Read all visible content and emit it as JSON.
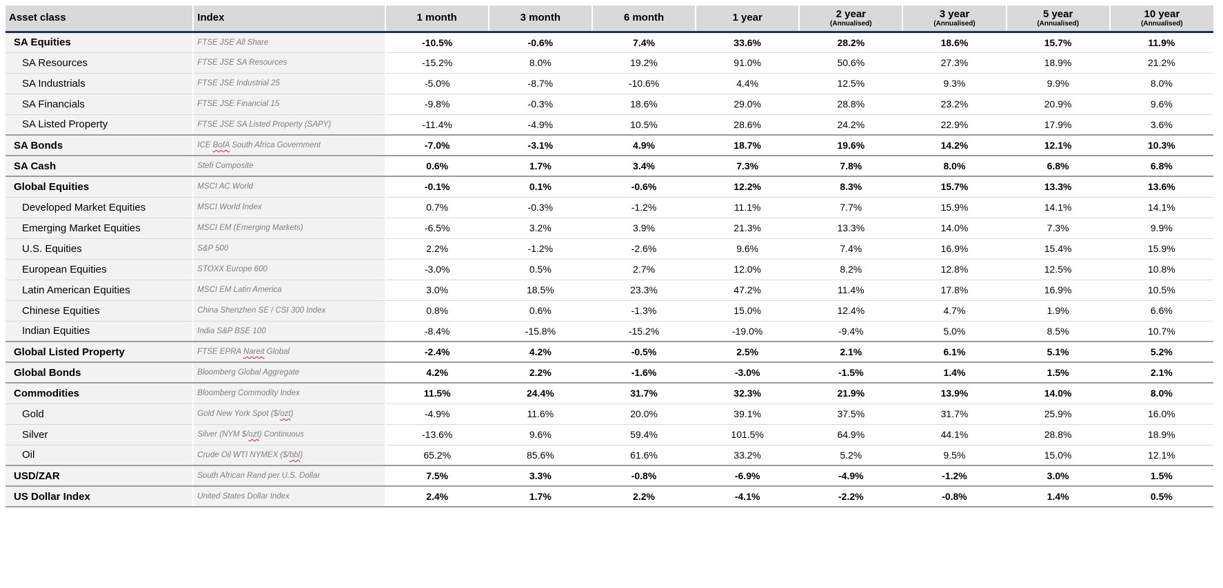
{
  "colors": {
    "header_bg": "#d9d9d9",
    "label_column_bg": "#f2f2f2",
    "header_rule": "#17365d",
    "squiggle": "#cc1f1f"
  },
  "chart_data": {
    "type": "table",
    "columns": [
      {
        "label": "Asset class",
        "sub": ""
      },
      {
        "label": "Index",
        "sub": ""
      },
      {
        "label": "1 month",
        "sub": ""
      },
      {
        "label": "3 month",
        "sub": ""
      },
      {
        "label": "6 month",
        "sub": ""
      },
      {
        "label": "1 year",
        "sub": ""
      },
      {
        "label": "2 year",
        "sub": "(Annualised)"
      },
      {
        "label": "3 year",
        "sub": "(Annualised)"
      },
      {
        "label": "5 year",
        "sub": "(Annualised)"
      },
      {
        "label": "10 year",
        "sub": "(Annualised)"
      }
    ],
    "rows": [
      {
        "asset": "SA Equities",
        "index": "FTSE JSE All Share",
        "bold": true,
        "group_end": false,
        "squiggle": [],
        "values": [
          "-10.5%",
          "-0.6%",
          "7.4%",
          "33.6%",
          "28.2%",
          "18.6%",
          "15.7%",
          "11.9%"
        ]
      },
      {
        "asset": "SA Resources",
        "index": "FTSE JSE SA Resources",
        "bold": false,
        "group_end": false,
        "squiggle": [],
        "values": [
          "-15.2%",
          "8.0%",
          "19.2%",
          "91.0%",
          "50.6%",
          "27.3%",
          "18.9%",
          "21.2%"
        ]
      },
      {
        "asset": "SA Industrials",
        "index": "FTSE JSE Industrial 25",
        "bold": false,
        "group_end": false,
        "squiggle": [],
        "values": [
          "-5.0%",
          "-8.7%",
          "-10.6%",
          "4.4%",
          "12.5%",
          "9.3%",
          "9.9%",
          "8.0%"
        ]
      },
      {
        "asset": "SA Financials",
        "index": "FTSE JSE Financial 15",
        "bold": false,
        "group_end": false,
        "squiggle": [],
        "values": [
          "-9.8%",
          "-0.3%",
          "18.6%",
          "29.0%",
          "28.8%",
          "23.2%",
          "20.9%",
          "9.6%"
        ]
      },
      {
        "asset": "SA Listed Property",
        "index": "FTSE JSE SA Listed Property (SAPY)",
        "bold": false,
        "group_end": true,
        "squiggle": [],
        "values": [
          "-11.4%",
          "-4.9%",
          "10.5%",
          "28.6%",
          "24.2%",
          "22.9%",
          "17.9%",
          "3.6%"
        ]
      },
      {
        "asset": "SA Bonds",
        "index": "ICE BofA South Africa Government",
        "bold": true,
        "group_end": true,
        "squiggle": [
          "BofA"
        ],
        "values": [
          "-7.0%",
          "-3.1%",
          "4.9%",
          "18.7%",
          "19.6%",
          "14.2%",
          "12.1%",
          "10.3%"
        ]
      },
      {
        "asset": "SA Cash",
        "index": "Stefi Composite",
        "bold": true,
        "group_end": true,
        "squiggle": [],
        "values": [
          "0.6%",
          "1.7%",
          "3.4%",
          "7.3%",
          "7.8%",
          "8.0%",
          "6.8%",
          "6.8%"
        ]
      },
      {
        "asset": "Global Equities",
        "index": "MSCI AC World",
        "bold": true,
        "group_end": false,
        "squiggle": [],
        "values": [
          "-0.1%",
          "0.1%",
          "-0.6%",
          "12.2%",
          "8.3%",
          "15.7%",
          "13.3%",
          "13.6%"
        ]
      },
      {
        "asset": "Developed Market Equities",
        "index": "MSCI World Index",
        "bold": false,
        "group_end": false,
        "squiggle": [],
        "values": [
          "0.7%",
          "-0.3%",
          "-1.2%",
          "11.1%",
          "7.7%",
          "15.9%",
          "14.1%",
          "14.1%"
        ]
      },
      {
        "asset": "Emerging Market Equities",
        "index": "MSCI EM (Emerging Markets)",
        "bold": false,
        "group_end": false,
        "squiggle": [],
        "values": [
          "-6.5%",
          "3.2%",
          "3.9%",
          "21.3%",
          "13.3%",
          "14.0%",
          "7.3%",
          "9.9%"
        ]
      },
      {
        "asset": "U.S. Equities",
        "index": "S&P 500",
        "bold": false,
        "group_end": false,
        "squiggle": [],
        "values": [
          "2.2%",
          "-1.2%",
          "-2.6%",
          "9.6%",
          "7.4%",
          "16.9%",
          "15.4%",
          "15.9%"
        ]
      },
      {
        "asset": "European Equities",
        "index": "STOXX Europe 600",
        "bold": false,
        "group_end": false,
        "squiggle": [],
        "values": [
          "-3.0%",
          "0.5%",
          "2.7%",
          "12.0%",
          "8.2%",
          "12.8%",
          "12.5%",
          "10.8%"
        ]
      },
      {
        "asset": "Latin American Equities",
        "index": "MSCI EM Latin America",
        "bold": false,
        "group_end": false,
        "squiggle": [],
        "values": [
          "3.0%",
          "18.5%",
          "23.3%",
          "47.2%",
          "11.4%",
          "17.8%",
          "16.9%",
          "10.5%"
        ]
      },
      {
        "asset": "Chinese Equities",
        "index": "China Shenzhen SE / CSI 300 Index",
        "bold": false,
        "group_end": false,
        "squiggle": [],
        "values": [
          "0.8%",
          "0.6%",
          "-1.3%",
          "15.0%",
          "12.4%",
          "4.7%",
          "1.9%",
          "6.6%"
        ]
      },
      {
        "asset": "Indian Equities",
        "index": "India S&P BSE 100",
        "bold": false,
        "group_end": true,
        "squiggle": [],
        "values": [
          "-8.4%",
          "-15.8%",
          "-15.2%",
          "-19.0%",
          "-9.4%",
          "5.0%",
          "8.5%",
          "10.7%"
        ]
      },
      {
        "asset": "Global Listed Property",
        "index": "FTSE EPRA Nareit Global",
        "bold": true,
        "group_end": true,
        "squiggle": [
          "Nareit"
        ],
        "values": [
          "-2.4%",
          "4.2%",
          "-0.5%",
          "2.5%",
          "2.1%",
          "6.1%",
          "5.1%",
          "5.2%"
        ]
      },
      {
        "asset": "Global Bonds",
        "index": "Bloomberg Global Aggregate",
        "bold": true,
        "group_end": true,
        "squiggle": [],
        "values": [
          "4.2%",
          "2.2%",
          "-1.6%",
          "-3.0%",
          "-1.5%",
          "1.4%",
          "1.5%",
          "2.1%"
        ]
      },
      {
        "asset": "Commodities",
        "index": "Bloomberg Commodity Index",
        "bold": true,
        "group_end": false,
        "squiggle": [],
        "values": [
          "11.5%",
          "24.4%",
          "31.7%",
          "32.3%",
          "21.9%",
          "13.9%",
          "14.0%",
          "8.0%"
        ]
      },
      {
        "asset": "Gold",
        "index": "Gold New York Spot ($/ozt)",
        "bold": false,
        "group_end": false,
        "squiggle": [
          "ozt"
        ],
        "values": [
          "-4.9%",
          "11.6%",
          "20.0%",
          "39.1%",
          "37.5%",
          "31.7%",
          "25.9%",
          "16.0%"
        ]
      },
      {
        "asset": "Silver",
        "index": "Silver (NYM $/ozt) Continuous",
        "bold": false,
        "group_end": false,
        "squiggle": [
          "ozt"
        ],
        "values": [
          "-13.6%",
          "9.6%",
          "59.4%",
          "101.5%",
          "64.9%",
          "44.1%",
          "28.8%",
          "18.9%"
        ]
      },
      {
        "asset": "Oil",
        "index": "Crude Oil WTI NYMEX ($/bbl)",
        "bold": false,
        "group_end": true,
        "squiggle": [
          "bbl"
        ],
        "values": [
          "65.2%",
          "85.6%",
          "61.6%",
          "33.2%",
          "5.2%",
          "9.5%",
          "15.0%",
          "12.1%"
        ]
      },
      {
        "asset": "USD/ZAR",
        "index": "South African Rand per U.S. Dollar",
        "bold": true,
        "group_end": true,
        "squiggle": [],
        "values": [
          "7.5%",
          "3.3%",
          "-0.8%",
          "-6.9%",
          "-4.9%",
          "-1.2%",
          "3.0%",
          "1.5%"
        ]
      },
      {
        "asset": "US Dollar Index",
        "index": "United States Dollar Index",
        "bold": true,
        "group_end": true,
        "squiggle": [],
        "values": [
          "2.4%",
          "1.7%",
          "2.2%",
          "-4.1%",
          "-2.2%",
          "-0.8%",
          "1.4%",
          "0.5%"
        ]
      }
    ]
  }
}
